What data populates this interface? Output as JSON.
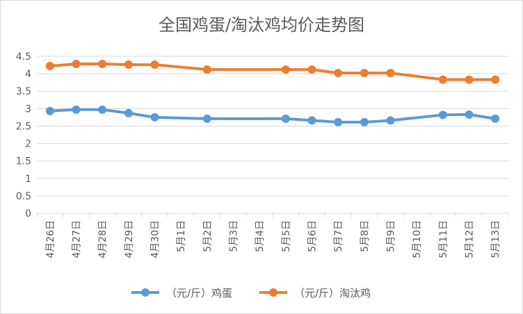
{
  "chart_data": {
    "type": "line",
    "title": "全国鸡蛋/淘汰鸡均价走势图",
    "categories": [
      "4月26日",
      "4月27日",
      "4月28日",
      "4月29日",
      "4月30日",
      "5月1日",
      "5月2日",
      "5月3日",
      "5月4日",
      "5月5日",
      "5月6日",
      "5月7日",
      "5月8日",
      "5月9日",
      "5月10日",
      "5月11日",
      "5月12日",
      "5月13日"
    ],
    "y_ticks": [
      "0",
      "0.5",
      "1",
      "1.5",
      "2",
      "2.5",
      "3",
      "3.5",
      "4",
      "4.5"
    ],
    "ylim": [
      0,
      4.5
    ],
    "grid": true,
    "legend_position": "bottom",
    "series": [
      {
        "name": "（元/斤）鸡蛋",
        "color": "#5b9bd5",
        "values": [
          2.93,
          2.97,
          2.97,
          2.87,
          2.75,
          null,
          2.71,
          null,
          null,
          2.71,
          2.66,
          2.61,
          2.61,
          2.66,
          null,
          2.82,
          2.83,
          2.71
        ]
      },
      {
        "name": "（元/斤）淘汰鸡",
        "color": "#ed7d31",
        "values": [
          4.22,
          4.28,
          4.28,
          4.26,
          4.26,
          null,
          4.12,
          null,
          null,
          4.12,
          4.12,
          4.02,
          4.02,
          4.02,
          null,
          3.83,
          3.83,
          3.83
        ]
      }
    ]
  }
}
